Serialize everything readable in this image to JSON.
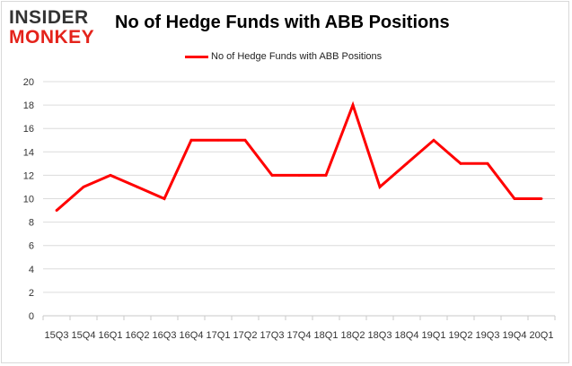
{
  "header": {
    "logo_line1": "INSIDER",
    "logo_line2": "MONKEY",
    "title": "No of Hedge Funds with ABB Positions"
  },
  "colors": {
    "series": "#ff0000",
    "grid": "#dcdcdc",
    "logo_dark": "#333333",
    "logo_red": "#e4231b"
  },
  "chart_data": {
    "type": "line",
    "title": "No of Hedge Funds with ABB Positions",
    "xlabel": "",
    "ylabel": "",
    "categories": [
      "15Q3",
      "15Q4",
      "16Q1",
      "16Q2",
      "16Q3",
      "16Q4",
      "17Q1",
      "17Q2",
      "17Q3",
      "17Q4",
      "18Q1",
      "18Q2",
      "18Q3",
      "18Q4",
      "19Q1",
      "19Q2",
      "19Q3",
      "19Q4",
      "20Q1"
    ],
    "series": [
      {
        "name": "No of Hedge Funds with ABB Positions",
        "values": [
          9,
          11,
          12,
          11,
          10,
          15,
          15,
          15,
          12,
          12,
          12,
          18,
          11,
          13,
          15,
          13,
          13,
          10,
          10
        ]
      }
    ],
    "ylim": [
      0,
      20
    ],
    "yticks": [
      0,
      2,
      4,
      6,
      8,
      10,
      12,
      14,
      16,
      18,
      20
    ],
    "grid": "horizontal",
    "legend_position": "top-center"
  }
}
